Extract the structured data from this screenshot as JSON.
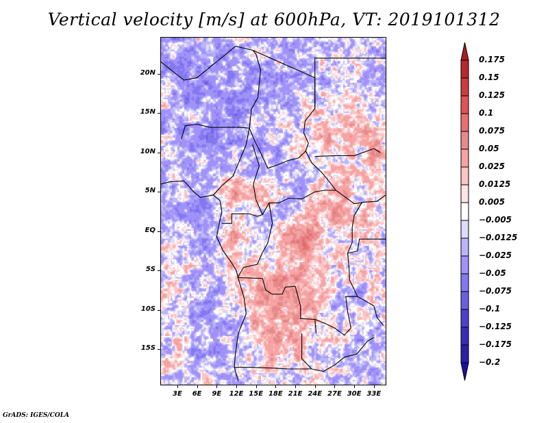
{
  "footer": "GrADS: IGES/COLA",
  "chart_data": {
    "type": "heatmap",
    "title": "Vertical velocity [m/s] at 600hPa, VT: 2019101312",
    "variable": "Vertical velocity",
    "units": "m/s",
    "level": "600hPa",
    "valid_time": "2019101312",
    "xlabel": "",
    "ylabel": "",
    "x_ticks": [
      "3E",
      "6E",
      "9E",
      "12E",
      "15E",
      "18E",
      "21E",
      "24E",
      "27E",
      "30E",
      "33E"
    ],
    "x_tick_values": [
      3,
      6,
      9,
      12,
      15,
      18,
      21,
      24,
      27,
      30,
      33
    ],
    "y_ticks": [
      "20N",
      "15N",
      "10N",
      "5N",
      "EQ",
      "5S",
      "10S",
      "15S"
    ],
    "y_tick_values": [
      20,
      15,
      10,
      5,
      0,
      -5,
      -10,
      -15
    ],
    "xlim": [
      0.5,
      34.8
    ],
    "ylim": [
      -19.5,
      24.6
    ],
    "grid": false,
    "legend": "right",
    "colorbar": {
      "labels": [
        "0.175",
        "0.15",
        "0.125",
        "0.1",
        "0.075",
        "0.05",
        "0.025",
        "0.0125",
        "0.005",
        "-0.005",
        "-0.0125",
        "-0.025",
        "-0.05",
        "-0.075",
        "-0.1",
        "-0.125",
        "-0.175",
        "-0.2"
      ],
      "colors": [
        "#a81e22",
        "#b72a2c",
        "#cc3b3d",
        "#e05455",
        "#e86f70",
        "#e68a8c",
        "#f6a3a3",
        "#fcc4c4",
        "#fde3e3",
        "#ffffff",
        "#dcdcfc",
        "#bcb4fb",
        "#a192fa",
        "#8478ef",
        "#6c5fdf",
        "#4f40cd",
        "#3a2cb6",
        "#2c1fa1",
        "#1e0fa0"
      ],
      "extend": "both"
    },
    "features": {
      "coastlines": true,
      "country_borders": true,
      "dominant_positive_regions": [
        "Gulf of Guinea coast",
        "Gabon/Congo coast",
        "Central DRC diagonal band",
        "Angola interior",
        "South Sudan"
      ],
      "dominant_negative_regions": [
        "Niger/Chad Sahara",
        "Central African Republic",
        "Atlantic Ocean off Angola"
      ]
    }
  }
}
